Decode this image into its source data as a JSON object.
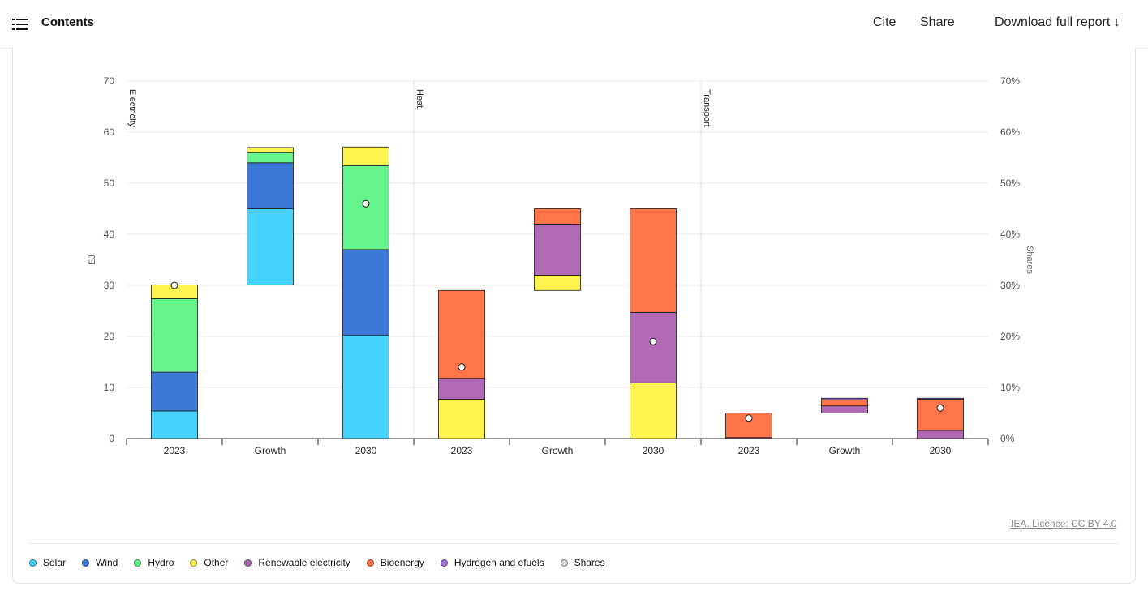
{
  "header": {
    "contents_label": "Contents",
    "cite_label": "Cite",
    "share_label": "Share",
    "download_label": "Download full report ↓"
  },
  "licence": "IEA. Licence: CC BY 4.0",
  "colors": {
    "Solar": "#46d4ff",
    "Wind": "#3c78d8",
    "Hydro": "#66f38c",
    "Other": "#fff44f",
    "Renewable electricity": "#b069b5",
    "Bioenergy": "#ff7448",
    "Hydrogen and efuels": "#a974e0",
    "Shares": "#dddddd"
  },
  "chart_data": {
    "type": "bar",
    "stacked": true,
    "waterfall_growth": true,
    "ylabel": "EJ",
    "ylabel_right": "Shares",
    "ylim": [
      0,
      70
    ],
    "yticks": [
      0,
      10,
      20,
      30,
      40,
      50,
      60,
      70
    ],
    "ylim_right": [
      0,
      70
    ],
    "yticks_right": [
      "0%",
      "10%",
      "20%",
      "30%",
      "40%",
      "50%",
      "60%",
      "70%"
    ],
    "grid": true,
    "legend_position": "bottom",
    "groups": [
      {
        "name": "Electricity",
        "bars": [
          {
            "label": "2023",
            "base": 0,
            "segments": [
              {
                "series": "Solar",
                "value": 5.4
              },
              {
                "series": "Wind",
                "value": 7.6
              },
              {
                "series": "Hydro",
                "value": 14.4
              },
              {
                "series": "Other",
                "value": 2.7
              }
            ],
            "share": 30
          },
          {
            "label": "Growth",
            "base": 30.1,
            "segments": [
              {
                "series": "Solar",
                "value": 14.9
              },
              {
                "series": "Wind",
                "value": 9.0
              },
              {
                "series": "Hydro",
                "value": 2.0
              },
              {
                "series": "Other",
                "value": 1.0
              }
            ],
            "share": null
          },
          {
            "label": "2030",
            "base": 0,
            "segments": [
              {
                "series": "Solar",
                "value": 20.2
              },
              {
                "series": "Wind",
                "value": 16.8
              },
              {
                "series": "Hydro",
                "value": 16.4
              },
              {
                "series": "Other",
                "value": 3.7
              }
            ],
            "share": 46
          }
        ]
      },
      {
        "name": "Heat",
        "bars": [
          {
            "label": "2023",
            "base": 0,
            "segments": [
              {
                "series": "Other",
                "value": 7.7
              },
              {
                "series": "Renewable electricity",
                "value": 4.1
              },
              {
                "series": "Bioenergy",
                "value": 17.2
              }
            ],
            "share": 14
          },
          {
            "label": "Growth",
            "base": 29.0,
            "segments": [
              {
                "series": "Other",
                "value": 3.0
              },
              {
                "series": "Renewable electricity",
                "value": 10.0
              },
              {
                "series": "Bioenergy",
                "value": 3.0
              }
            ],
            "share": null
          },
          {
            "label": "2030",
            "base": 0,
            "segments": [
              {
                "series": "Other",
                "value": 10.9
              },
              {
                "series": "Renewable electricity",
                "value": 13.8
              },
              {
                "series": "Bioenergy",
                "value": 20.3
              }
            ],
            "share": 19
          }
        ]
      },
      {
        "name": "Transport",
        "bars": [
          {
            "label": "2023",
            "base": 0,
            "segments": [
              {
                "series": "Renewable electricity",
                "value": 0.2
              },
              {
                "series": "Bioenergy",
                "value": 4.8
              }
            ],
            "share": 4
          },
          {
            "label": "Growth",
            "base": 5.0,
            "segments": [
              {
                "series": "Renewable electricity",
                "value": 1.4
              },
              {
                "series": "Bioenergy",
                "value": 1.2
              },
              {
                "series": "Hydrogen and efuels",
                "value": 0.3
              }
            ],
            "share": null
          },
          {
            "label": "2030",
            "base": 0,
            "segments": [
              {
                "series": "Renewable electricity",
                "value": 1.6
              },
              {
                "series": "Bioenergy",
                "value": 6.1
              },
              {
                "series": "Hydrogen and efuels",
                "value": 0.2
              }
            ],
            "share": 6
          }
        ]
      }
    ],
    "legend": [
      "Solar",
      "Wind",
      "Hydro",
      "Other",
      "Renewable electricity",
      "Bioenergy",
      "Hydrogen and efuels",
      "Shares"
    ]
  }
}
